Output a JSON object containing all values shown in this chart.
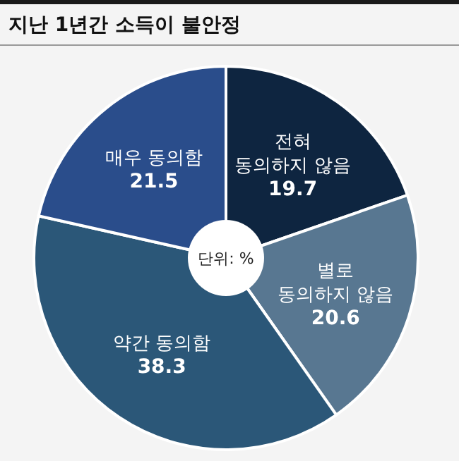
{
  "chart_data": {
    "type": "pie",
    "title": "지난 1년간 소득이 불안정",
    "categories": [
      "전혀\n동의하지 않음",
      "별로\n동의하지 않음",
      "약간 동의함",
      "매우 동의함"
    ],
    "values": [
      19.7,
      20.6,
      38.3,
      21.5
    ],
    "colors": [
      "#0e2540",
      "#587791",
      "#2b5778",
      "#2a4d8b"
    ],
    "data_labels": true,
    "annotations": [
      "단위: %"
    ]
  }
}
